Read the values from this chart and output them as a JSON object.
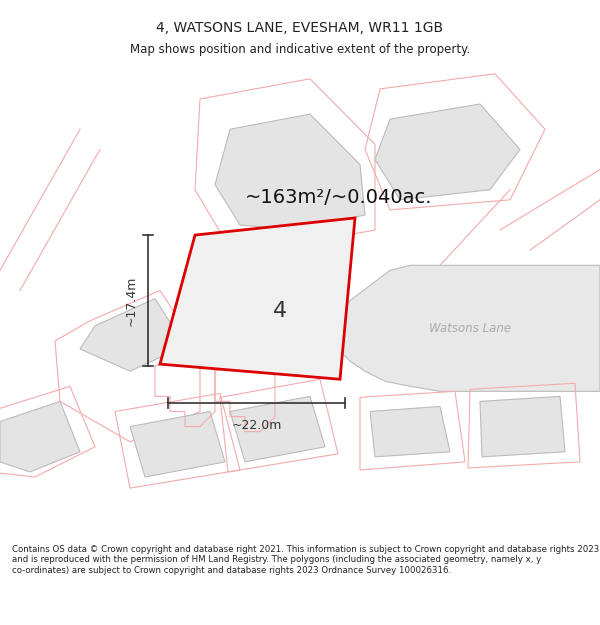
{
  "title_line1": "4, WATSONS LANE, EVESHAM, WR11 1GB",
  "title_line2": "Map shows position and indicative extent of the property.",
  "area_text": "~163m²/~0.040ac.",
  "number_label": "4",
  "dim_width": "~22.0m",
  "dim_height": "~17.4m",
  "road_label": "Watsons Lane",
  "footer_text": "Contains OS data © Crown copyright and database right 2021. This information is subject to Crown copyright and database rights 2023 and is reproduced with the permission of HM Land Registry. The polygons (including the associated geometry, namely x, y co-ordinates) are subject to Crown copyright and database rights 2023 Ordnance Survey 100026316.",
  "bg_color": "#ffffff",
  "map_bg": "#ffffff",
  "plot_fill": "#e8e8e8",
  "plot_edge": "#dd0000",
  "neighbor_fill": "#e4e4e4",
  "neighbor_edge": "#f4aaaa",
  "road_fill": "#e8e8e8",
  "road_edge": "#cccccc",
  "dim_color": "#333333"
}
